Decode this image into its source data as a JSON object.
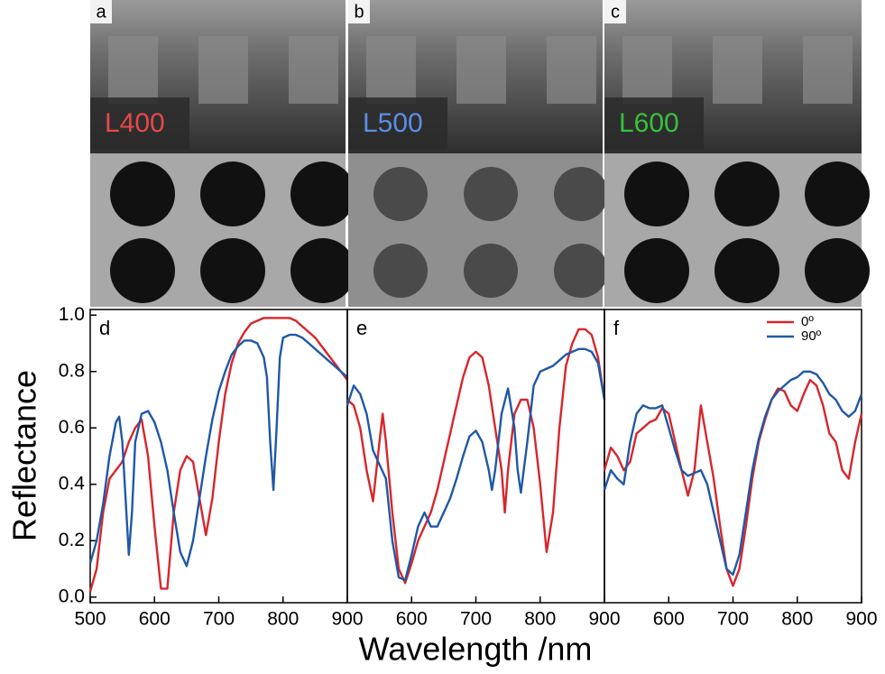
{
  "images": [
    {
      "label": "a",
      "sample": "L400",
      "color": "#e8484b"
    },
    {
      "label": "b",
      "sample": "L500",
      "color": "#5b8ee6"
    },
    {
      "label": "c",
      "sample": "L600",
      "color": "#36c23c"
    }
  ],
  "ylabel": "Reflectance",
  "xlabel": "Wavelength /nm",
  "chart_data": [
    {
      "type": "line",
      "label": "d",
      "xlim": [
        500,
        900
      ],
      "ylim": [
        -0.02,
        1.02
      ],
      "xticks": [
        500,
        600,
        700,
        800,
        900
      ],
      "yticks": [
        {
          "value": 0,
          "label": "0.0"
        },
        0.2,
        0.4,
        0.6,
        0.8,
        {
          "value": 1,
          "label": "1.0"
        }
      ],
      "series": [
        {
          "name": "0º",
          "color": "#d7262b",
          "x": [
            500,
            510,
            520,
            530,
            540,
            550,
            560,
            570,
            580,
            590,
            600,
            610,
            620,
            630,
            640,
            650,
            660,
            670,
            680,
            690,
            700,
            710,
            720,
            730,
            740,
            750,
            760,
            770,
            780,
            790,
            800,
            810,
            820,
            830,
            840,
            850,
            860,
            870,
            880,
            890,
            900
          ],
          "values": [
            0.02,
            0.1,
            0.3,
            0.42,
            0.45,
            0.48,
            0.55,
            0.6,
            0.63,
            0.5,
            0.25,
            0.03,
            0.03,
            0.3,
            0.45,
            0.5,
            0.48,
            0.35,
            0.22,
            0.35,
            0.55,
            0.72,
            0.83,
            0.9,
            0.94,
            0.97,
            0.98,
            0.99,
            0.99,
            0.99,
            0.99,
            0.99,
            0.98,
            0.96,
            0.94,
            0.92,
            0.89,
            0.86,
            0.83,
            0.8,
            0.77
          ]
        },
        {
          "name": "90º",
          "color": "#1f58a6",
          "x": [
            500,
            510,
            520,
            530,
            540,
            545,
            550,
            560,
            565,
            570,
            580,
            590,
            600,
            610,
            620,
            630,
            640,
            650,
            660,
            670,
            680,
            690,
            700,
            710,
            720,
            730,
            740,
            750,
            760,
            770,
            775,
            780,
            785,
            790,
            795,
            800,
            810,
            820,
            830,
            840,
            850,
            860,
            870,
            880,
            890,
            900
          ],
          "values": [
            0.12,
            0.2,
            0.33,
            0.5,
            0.62,
            0.64,
            0.55,
            0.15,
            0.3,
            0.55,
            0.65,
            0.66,
            0.62,
            0.55,
            0.45,
            0.3,
            0.16,
            0.11,
            0.2,
            0.35,
            0.5,
            0.63,
            0.73,
            0.8,
            0.86,
            0.89,
            0.91,
            0.91,
            0.9,
            0.85,
            0.78,
            0.55,
            0.38,
            0.6,
            0.85,
            0.92,
            0.93,
            0.93,
            0.92,
            0.9,
            0.88,
            0.86,
            0.84,
            0.82,
            0.8,
            0.78
          ]
        }
      ]
    },
    {
      "type": "line",
      "label": "e",
      "xlim": [
        500,
        900
      ],
      "ylim": [
        -0.02,
        1.02
      ],
      "xticks": [
        600,
        700,
        800,
        900
      ],
      "series": [
        {
          "name": "0º",
          "color": "#d7262b",
          "x": [
            500,
            510,
            520,
            530,
            540,
            550,
            555,
            560,
            570,
            580,
            590,
            600,
            610,
            620,
            630,
            640,
            650,
            660,
            670,
            680,
            690,
            700,
            710,
            720,
            730,
            740,
            745,
            750,
            760,
            770,
            780,
            790,
            800,
            810,
            820,
            830,
            840,
            850,
            860,
            870,
            880,
            890,
            900
          ],
          "values": [
            0.7,
            0.68,
            0.6,
            0.45,
            0.34,
            0.55,
            0.65,
            0.55,
            0.3,
            0.1,
            0.05,
            0.12,
            0.2,
            0.25,
            0.3,
            0.38,
            0.48,
            0.58,
            0.68,
            0.78,
            0.85,
            0.87,
            0.85,
            0.75,
            0.6,
            0.45,
            0.3,
            0.45,
            0.65,
            0.7,
            0.7,
            0.6,
            0.4,
            0.16,
            0.3,
            0.6,
            0.82,
            0.9,
            0.95,
            0.95,
            0.93,
            0.85,
            0.7
          ]
        },
        {
          "name": "90º",
          "color": "#1f58a6",
          "x": [
            500,
            510,
            520,
            530,
            540,
            550,
            560,
            570,
            580,
            590,
            600,
            610,
            620,
            630,
            640,
            650,
            660,
            670,
            680,
            690,
            700,
            710,
            720,
            725,
            730,
            740,
            750,
            760,
            765,
            770,
            780,
            790,
            800,
            810,
            820,
            830,
            840,
            850,
            860,
            870,
            880,
            890,
            900
          ],
          "values": [
            0.68,
            0.75,
            0.72,
            0.65,
            0.52,
            0.47,
            0.42,
            0.2,
            0.07,
            0.06,
            0.15,
            0.25,
            0.3,
            0.25,
            0.25,
            0.3,
            0.35,
            0.42,
            0.5,
            0.57,
            0.59,
            0.55,
            0.45,
            0.38,
            0.45,
            0.65,
            0.74,
            0.6,
            0.45,
            0.37,
            0.55,
            0.75,
            0.8,
            0.81,
            0.82,
            0.84,
            0.86,
            0.87,
            0.88,
            0.88,
            0.87,
            0.83,
            0.7
          ]
        }
      ]
    },
    {
      "type": "line",
      "label": "f",
      "xlim": [
        500,
        900
      ],
      "ylim": [
        -0.02,
        1.02
      ],
      "xticks": [
        600,
        700,
        800,
        900
      ],
      "legend": "upper right",
      "series": [
        {
          "name": "0º",
          "color": "#d7262b",
          "x": [
            500,
            510,
            520,
            530,
            540,
            550,
            560,
            570,
            580,
            590,
            600,
            610,
            620,
            630,
            640,
            650,
            660,
            670,
            680,
            690,
            700,
            710,
            720,
            730,
            740,
            750,
            760,
            770,
            780,
            790,
            800,
            810,
            820,
            830,
            840,
            850,
            860,
            870,
            880,
            890,
            900
          ],
          "values": [
            0.45,
            0.53,
            0.5,
            0.45,
            0.48,
            0.58,
            0.6,
            0.62,
            0.63,
            0.67,
            0.65,
            0.55,
            0.45,
            0.36,
            0.45,
            0.68,
            0.55,
            0.42,
            0.25,
            0.1,
            0.04,
            0.1,
            0.25,
            0.42,
            0.55,
            0.63,
            0.7,
            0.74,
            0.73,
            0.68,
            0.66,
            0.72,
            0.77,
            0.75,
            0.68,
            0.58,
            0.55,
            0.45,
            0.42,
            0.55,
            0.65
          ]
        },
        {
          "name": "90º",
          "color": "#1f58a6",
          "x": [
            500,
            510,
            520,
            530,
            540,
            550,
            560,
            570,
            580,
            590,
            600,
            610,
            620,
            630,
            640,
            650,
            660,
            670,
            680,
            690,
            700,
            710,
            720,
            730,
            740,
            750,
            760,
            770,
            780,
            790,
            800,
            810,
            820,
            830,
            840,
            850,
            860,
            870,
            880,
            890,
            900
          ],
          "values": [
            0.38,
            0.45,
            0.42,
            0.4,
            0.55,
            0.65,
            0.68,
            0.67,
            0.67,
            0.68,
            0.6,
            0.52,
            0.45,
            0.43,
            0.44,
            0.45,
            0.4,
            0.3,
            0.2,
            0.1,
            0.08,
            0.15,
            0.3,
            0.45,
            0.56,
            0.64,
            0.7,
            0.73,
            0.75,
            0.77,
            0.78,
            0.8,
            0.8,
            0.79,
            0.76,
            0.72,
            0.7,
            0.66,
            0.64,
            0.66,
            0.72
          ]
        }
      ]
    }
  ]
}
